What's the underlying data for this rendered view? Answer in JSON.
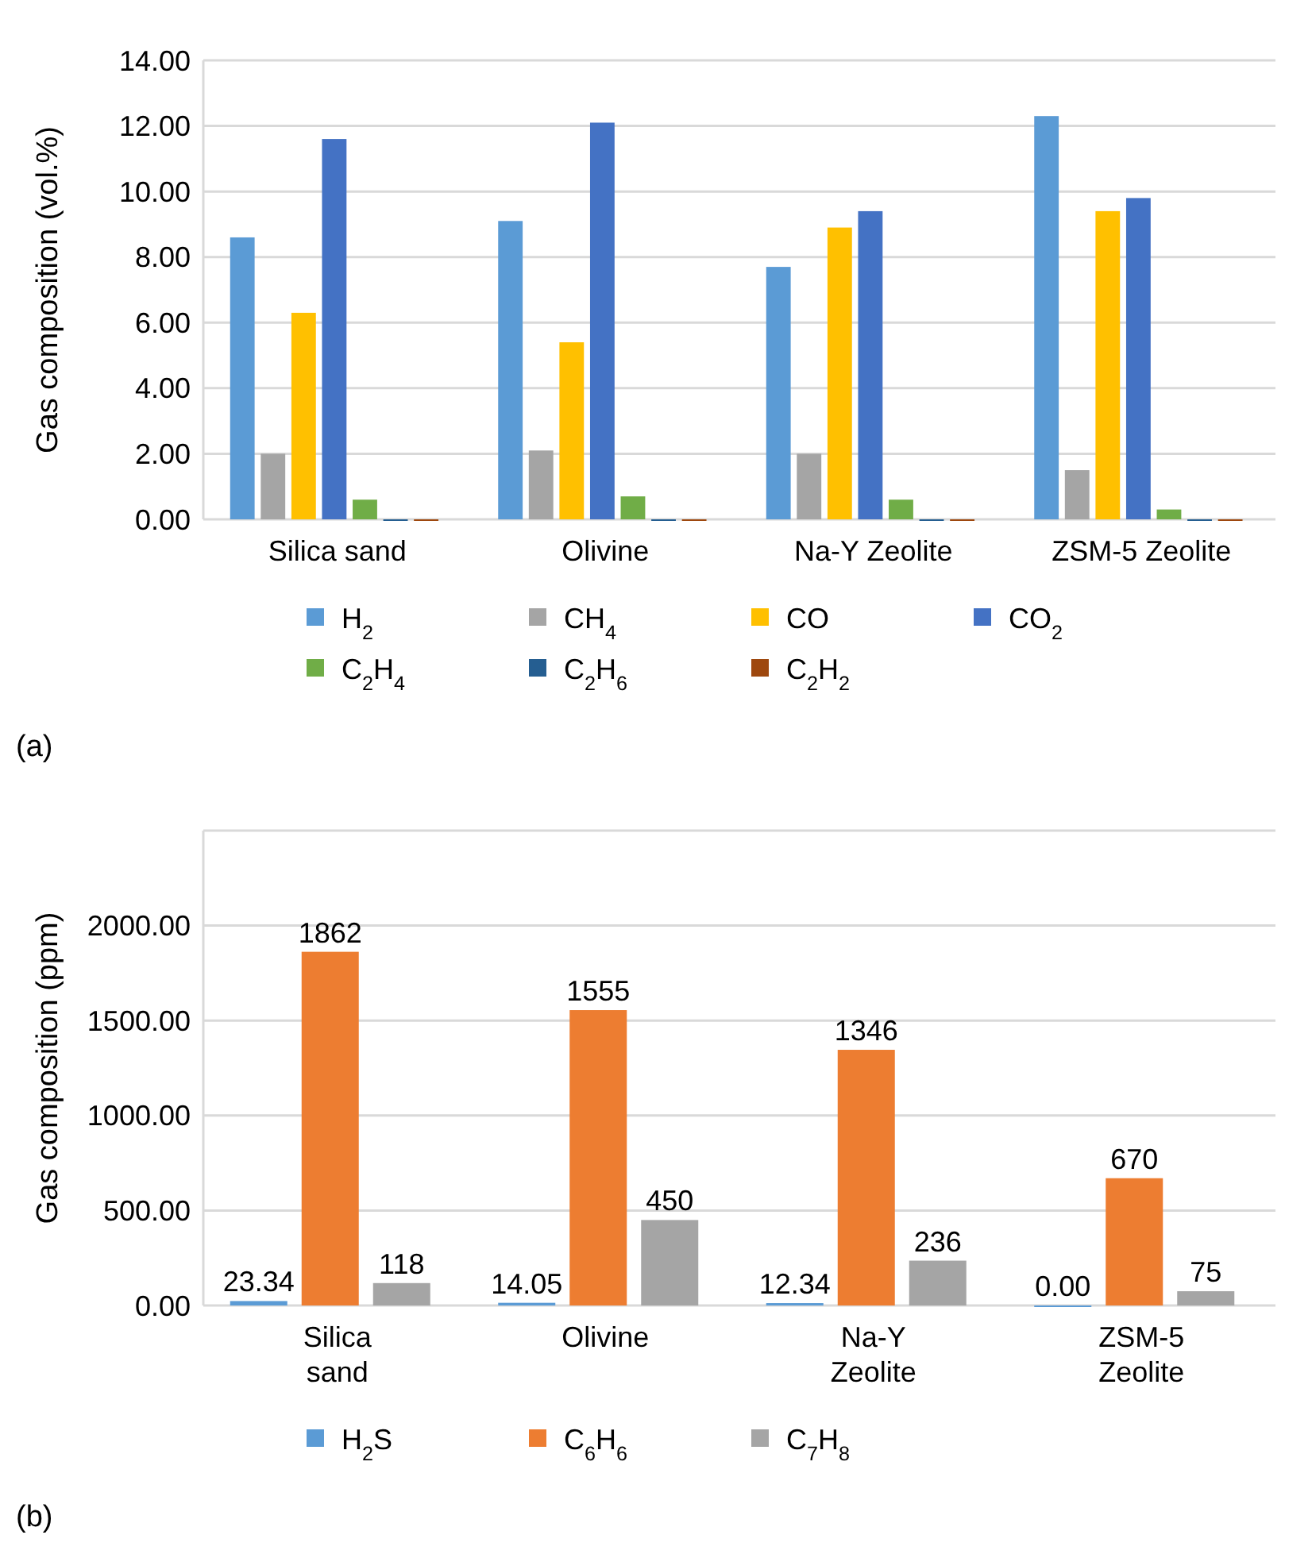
{
  "chart_data": [
    {
      "type": "bar",
      "ylabel": "Gas composition (vol.%)",
      "categories": [
        "Silica sand",
        "Olivine",
        "Na-Y Zeolite",
        "ZSM-5 Zeolite"
      ],
      "series": [
        {
          "name": "H$_{2}$",
          "color": "#5b9bd5",
          "values": [
            8.6,
            9.1,
            7.7,
            12.3
          ]
        },
        {
          "name": "CH$_{4}$",
          "color": "#a5a5a5",
          "values": [
            2.0,
            2.1,
            2.0,
            1.5
          ]
        },
        {
          "name": "CO",
          "color": "#ffc000",
          "values": [
            6.3,
            5.4,
            8.9,
            9.4
          ]
        },
        {
          "name": "CO$_{2}$",
          "color": "#4472c4",
          "values": [
            11.6,
            12.1,
            9.4,
            9.8
          ]
        },
        {
          "name": "C$_{2}$H$_{4}$",
          "color": "#70ad47",
          "values": [
            0.6,
            0.7,
            0.6,
            0.3
          ]
        },
        {
          "name": "C$_{2}$H$_{6}$",
          "color": "#255e91",
          "values": [
            0,
            0,
            0,
            0
          ]
        },
        {
          "name": "C$_{2}$H$_{2}$",
          "color": "#9e480e",
          "values": [
            0,
            0,
            0,
            0
          ]
        }
      ],
      "ylim": [
        0,
        14
      ],
      "yticks": [
        {
          "value": 0,
          "label": "0.00"
        },
        {
          "value": 2,
          "label": "2.00"
        },
        {
          "value": 4,
          "label": "4.00"
        },
        {
          "value": 6,
          "label": "6.00"
        },
        {
          "value": 8,
          "label": "8.00"
        },
        {
          "value": 10,
          "label": "10.00"
        },
        {
          "value": 12,
          "label": "12.00"
        },
        {
          "value": 14,
          "label": "14.00"
        }
      ],
      "grid": "y",
      "legend": "bottom",
      "annotations": [
        "(a)"
      ]
    },
    {
      "type": "bar",
      "ylabel": "Gas composition (ppm)",
      "categories": [
        "Silica sand",
        "Olivine",
        "Na-Y Zeolite",
        "ZSM-5 Zeolite"
      ],
      "series": [
        {
          "name": "H$_{2}$S",
          "color": "#5b9bd5",
          "values": [
            23.34,
            14.05,
            12.34,
            0
          ],
          "value_labels": [
            "23.34",
            "14.05",
            "12.34",
            "0.00"
          ]
        },
        {
          "name": "C$_{6}$H$_{6}$",
          "color": "#ed7d31",
          "values": [
            1862,
            1555,
            1346,
            670
          ],
          "value_labels": [
            "1862",
            "1555",
            "1346",
            "670"
          ]
        },
        {
          "name": "C$_{7}$H$_{8}$",
          "color": "#a5a5a5",
          "values": [
            118,
            450,
            236,
            75
          ],
          "value_labels": [
            "118",
            "450",
            "236",
            "75"
          ]
        }
      ],
      "ylim": [
        0,
        2500
      ],
      "yticks": [
        {
          "value": 0,
          "label": "0.00"
        },
        {
          "value": 500,
          "label": "500.00"
        },
        {
          "value": 1000,
          "label": "1000.00"
        },
        {
          "value": 1500,
          "label": "1500.00"
        },
        {
          "value": 2000,
          "label": "2000.00"
        },
        {
          "value": 2500,
          "label": null
        }
      ],
      "grid": "y",
      "legend": "bottom",
      "annotations": [
        "(b)"
      ]
    }
  ]
}
